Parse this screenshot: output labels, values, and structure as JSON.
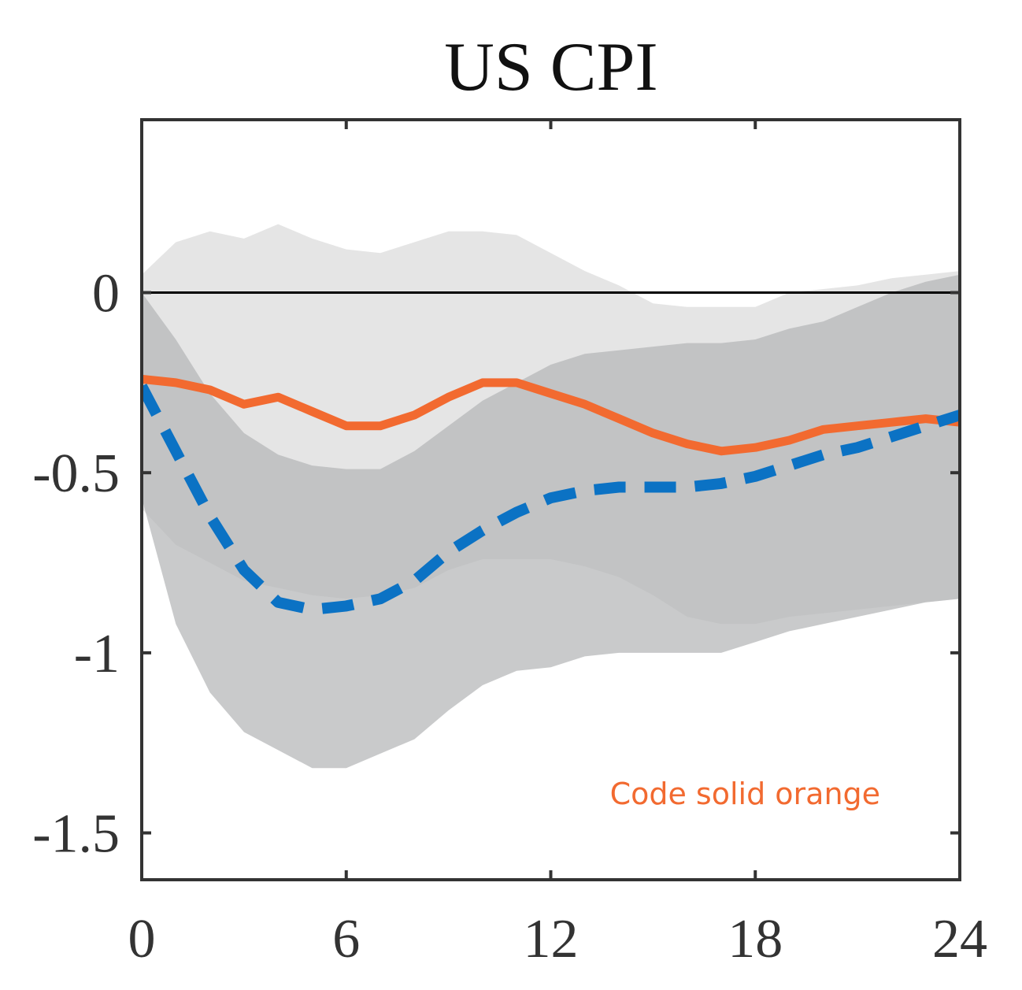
{
  "chart_data": {
    "type": "line",
    "title": "US CPI",
    "xlabel": "",
    "ylabel": "",
    "xlim": [
      0,
      24
    ],
    "ylim": [
      -1.63,
      0.48
    ],
    "x_ticks": [
      0,
      6,
      12,
      18,
      24
    ],
    "y_ticks": [
      0,
      -0.5,
      -1,
      -1.5
    ],
    "x_tick_labels": [
      "0",
      "6",
      "12",
      "18",
      "24"
    ],
    "y_tick_labels": [
      "0",
      "-0.5",
      "-1",
      "-1.5"
    ],
    "grid": false,
    "zero_line": true,
    "x": [
      0,
      1,
      2,
      3,
      4,
      5,
      6,
      7,
      8,
      9,
      10,
      11,
      12,
      13,
      14,
      15,
      16,
      17,
      18,
      19,
      20,
      21,
      22,
      23,
      24
    ],
    "bands": [
      {
        "color": "#e5e5e5",
        "upper": [
          0.05,
          0.14,
          0.17,
          0.15,
          0.19,
          0.15,
          0.12,
          0.11,
          0.14,
          0.17,
          0.17,
          0.16,
          0.11,
          0.06,
          0.02,
          -0.03,
          -0.04,
          -0.04,
          -0.04,
          0.0,
          0.01,
          0.02,
          0.04,
          0.05,
          0.06
        ],
        "lower": [
          -0.6,
          -0.7,
          -0.75,
          -0.8,
          -0.82,
          -0.84,
          -0.85,
          -0.84,
          -0.82,
          -0.77,
          -0.74,
          -0.74,
          -0.74,
          -0.76,
          -0.79,
          -0.84,
          -0.9,
          -0.92,
          -0.92,
          -0.9,
          -0.89,
          -0.88,
          -0.87,
          -0.86,
          -0.85
        ]
      },
      {
        "color": "#b4b5b7",
        "opacity": 0.72,
        "upper": [
          0.0,
          -0.13,
          -0.28,
          -0.39,
          -0.45,
          -0.48,
          -0.49,
          -0.49,
          -0.44,
          -0.37,
          -0.3,
          -0.25,
          -0.2,
          -0.17,
          -0.16,
          -0.15,
          -0.14,
          -0.14,
          -0.13,
          -0.1,
          -0.08,
          -0.04,
          0.0,
          0.03,
          0.05
        ],
        "lower": [
          -0.57,
          -0.92,
          -1.11,
          -1.22,
          -1.27,
          -1.32,
          -1.32,
          -1.28,
          -1.24,
          -1.16,
          -1.09,
          -1.05,
          -1.04,
          -1.01,
          -1.0,
          -1.0,
          -1.0,
          -1.0,
          -0.97,
          -0.94,
          -0.92,
          -0.9,
          -0.88,
          -0.86,
          -0.85
        ]
      }
    ],
    "series": [
      {
        "style": "solid",
        "color": "#f26a30",
        "values": [
          -0.24,
          -0.25,
          -0.27,
          -0.31,
          -0.29,
          -0.33,
          -0.37,
          -0.37,
          -0.34,
          -0.29,
          -0.25,
          -0.25,
          -0.28,
          -0.31,
          -0.35,
          -0.39,
          -0.42,
          -0.44,
          -0.43,
          -0.41,
          -0.38,
          -0.37,
          -0.36,
          -0.35,
          -0.36
        ]
      },
      {
        "style": "dashed",
        "color": "#0b72c4",
        "values": [
          -0.26,
          -0.44,
          -0.62,
          -0.77,
          -0.86,
          -0.88,
          -0.87,
          -0.85,
          -0.8,
          -0.72,
          -0.66,
          -0.61,
          -0.57,
          -0.55,
          -0.54,
          -0.54,
          -0.54,
          -0.53,
          -0.51,
          -0.48,
          -0.45,
          -0.43,
          -0.4,
          -0.37,
          -0.34
        ]
      }
    ],
    "annotation": {
      "text": "Code solid orange",
      "color": "#f26a30",
      "x": 17.7,
      "y": -1.39
    }
  }
}
